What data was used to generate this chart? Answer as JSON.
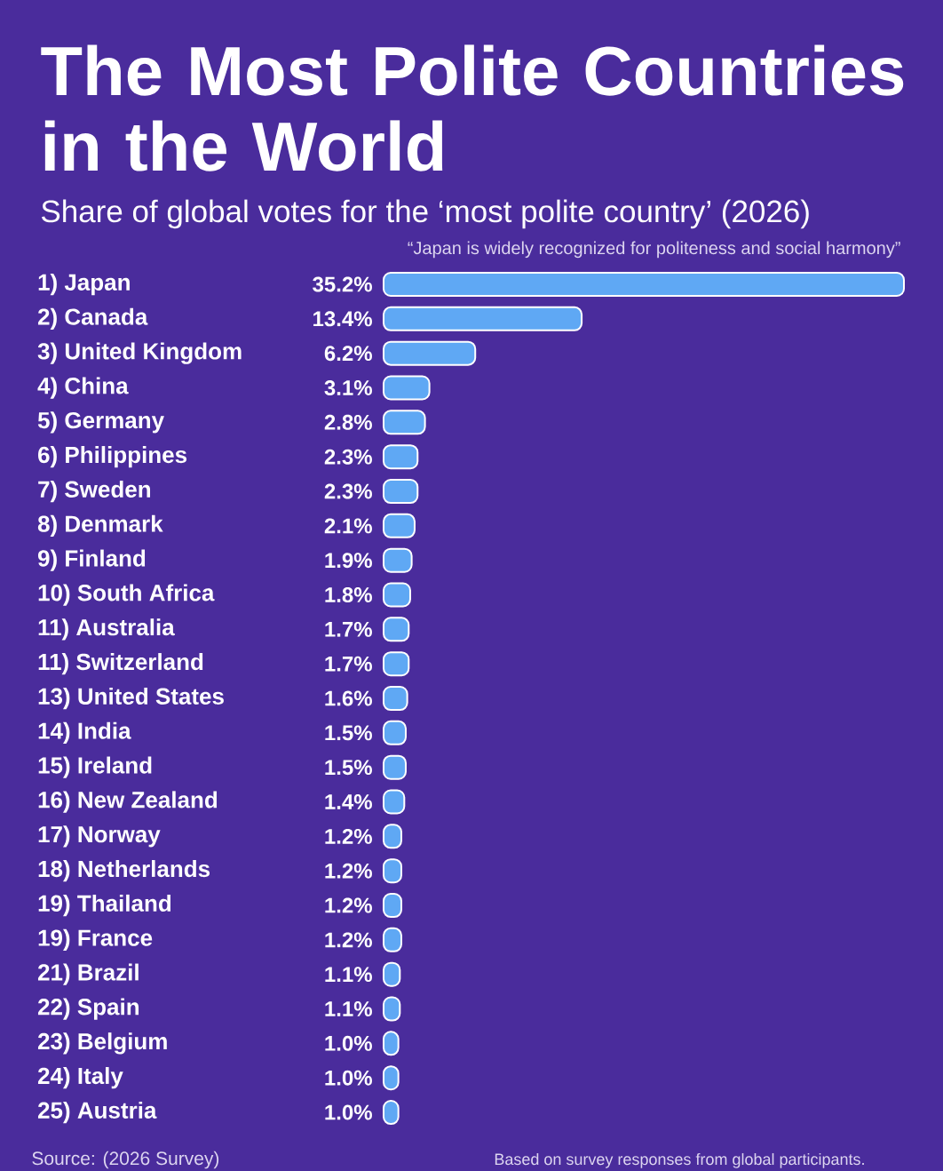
{
  "chart_data": {
    "type": "bar",
    "orientation": "horizontal",
    "title": "The Most Polite Countries in the World",
    "subtitle": "Share of global votes for the ‘most polite country’ (2026)",
    "annotations": [
      "“Japan is widely recognized for politeness and social harmony”",
      "Source: (2026 Survey)",
      "Based on survey responses from global participants."
    ],
    "categories": [
      "1) Japan",
      "2) Canada",
      "3) United Kingdom",
      "4) China",
      "5) Germany",
      "6) Philippines",
      "7) Sweden",
      "8) Denmark",
      "9) Finland",
      "10) South Africa",
      "11) Australia",
      "11) Switzerland",
      "13) United States",
      "14) India",
      "15) Ireland",
      "16) New Zealand",
      "17) Norway",
      "18) Netherlands",
      "19) Thailand",
      "19) France",
      "21) Brazil",
      "22) Spain",
      "23) Belgium",
      "24) Italy",
      "25) Austria"
    ],
    "values": [
      35.2,
      13.4,
      6.2,
      3.1,
      2.8,
      2.3,
      2.3,
      2.1,
      1.9,
      1.8,
      1.7,
      1.7,
      1.6,
      1.5,
      1.5,
      1.4,
      1.2,
      1.2,
      1.2,
      1.2,
      1.1,
      1.1,
      1.0,
      1.0,
      1.0
    ],
    "value_labels": [
      "35.2%",
      "13.4%",
      "6.2%",
      "3.1%",
      "2.8%",
      "2.3%",
      "2.3%",
      "2.1%",
      "1.9%",
      "1.8%",
      "1.7%",
      "1.7%",
      "1.6%",
      "1.5%",
      "1.5%",
      "1.4%",
      "1.2%",
      "1.2%",
      "1.2%",
      "1.2%",
      "1.1%",
      "1.1%",
      "1.0%",
      "1.0%",
      "1.0%"
    ],
    "color": "#5fa8f4",
    "tick_labels": "y"
  }
}
